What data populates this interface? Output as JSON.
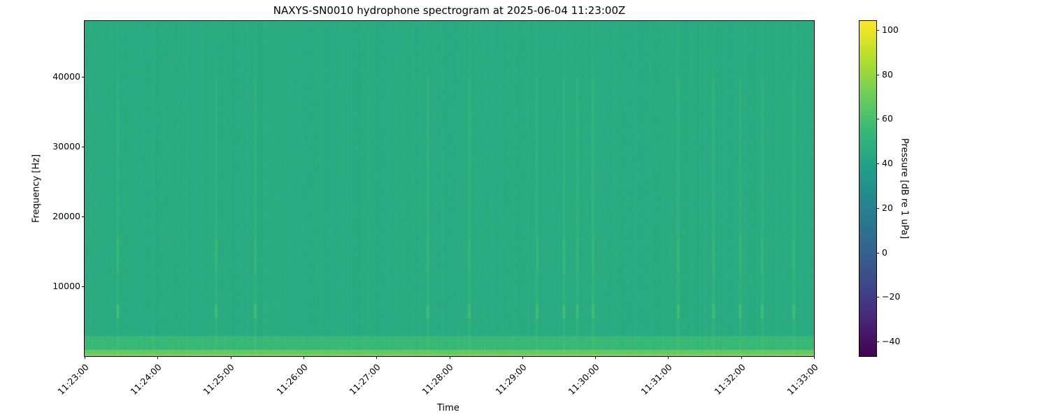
{
  "chart_data": {
    "type": "heatmap",
    "title": "NAXYS-SN0010 hydrophone spectrogram at 2025-06-04 11:23:00Z",
    "xlabel": "Time",
    "ylabel": "Frequency [Hz]",
    "colorbar_label": "Pressure [dB re 1 uPa]",
    "colormap": "viridis",
    "xlim": [
      "11:23:00",
      "11:33:00"
    ],
    "ylim": [
      0,
      48000
    ],
    "clim": [
      -46.6,
      104.1
    ],
    "xticks": [
      "11:23:00",
      "11:24:00",
      "11:25:00",
      "11:26:00",
      "11:27:00",
      "11:28:00",
      "11:29:00",
      "11:30:00",
      "11:31:00",
      "11:32:00",
      "11:33:00"
    ],
    "yticks": [
      10000,
      20000,
      30000,
      40000
    ],
    "ytick_labels": [
      "10000",
      "20000",
      "30000",
      "40000"
    ],
    "cticks": [
      -40,
      -20,
      0,
      20,
      40,
      60,
      80,
      100
    ],
    "ctick_labels": [
      "−40",
      "−20",
      "0",
      "20",
      "40",
      "60",
      "80",
      "100"
    ],
    "background_level_db": [
      {
        "freq_range_hz": [
          0,
          1000
        ],
        "db": 68
      },
      {
        "freq_range_hz": [
          1000,
          3000
        ],
        "db": 55
      },
      {
        "freq_range_hz": [
          3000,
          48000
        ],
        "db": 46
      }
    ],
    "transient_events": [
      "11:23:27",
      "11:24:48",
      "11:25:20",
      "11:27:42",
      "11:28:16",
      "11:29:12",
      "11:29:34",
      "11:29:45",
      "11:29:58",
      "11:31:08",
      "11:31:37",
      "11:31:59",
      "11:32:17",
      "11:32:43"
    ]
  }
}
